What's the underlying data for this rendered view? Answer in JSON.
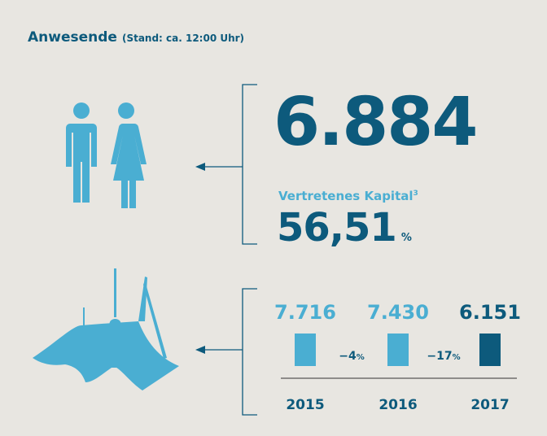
{
  "header": {
    "title": "Anwesende",
    "subtitle": "(Stand: ca. 12:00 Uhr)"
  },
  "attendance": {
    "value": "6.884"
  },
  "capital": {
    "label": "Vertretenes Kapital",
    "footnote": "3",
    "value": "56,51",
    "unit": "%"
  },
  "history": {
    "items": [
      {
        "year": "2015",
        "value": "7.716"
      },
      {
        "year": "2016",
        "value": "7.430"
      },
      {
        "year": "2017",
        "value": "6.151"
      }
    ],
    "changes": [
      {
        "value": "−4",
        "unit": "%"
      },
      {
        "value": "−17",
        "unit": "%"
      }
    ]
  }
}
